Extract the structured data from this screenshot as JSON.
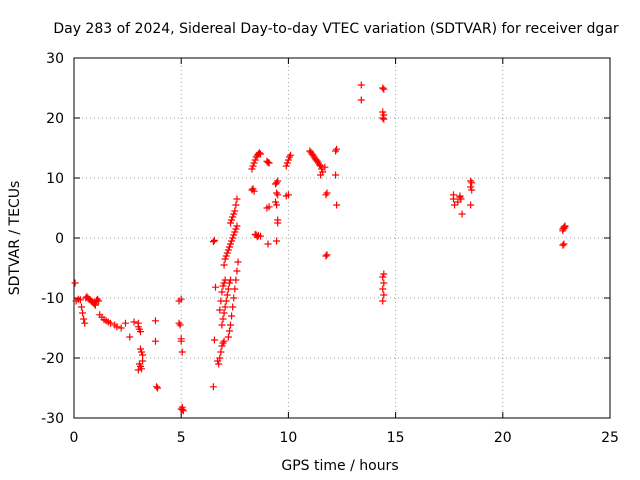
{
  "chart_data": {
    "type": "scatter",
    "title": "Day 283 of 2024, Sidereal Day-to-day VTEC variation (SDTVAR) for receiver dgar",
    "xlabel": "GPS time / hours",
    "ylabel": "SDTVAR / TECUs",
    "xlim": [
      0,
      25
    ],
    "ylim": [
      -30,
      30
    ],
    "xticks": [
      0,
      5,
      10,
      15,
      20,
      25
    ],
    "yticks": [
      -30,
      -20,
      -10,
      0,
      10,
      20,
      30
    ],
    "xtick_labels": [
      "0",
      "5",
      "10",
      "15",
      "20",
      "25"
    ],
    "ytick_labels": [
      "-30",
      "-20",
      "-10",
      "0",
      "10",
      "20",
      "30"
    ],
    "grid": true,
    "marker": "plus",
    "color": "#ff0000",
    "series": [
      {
        "name": "SDTVAR",
        "x": [
          0.05,
          0.1,
          0.2,
          0.3,
          0.35,
          0.4,
          0.45,
          0.5,
          0.55,
          0.6,
          0.65,
          0.7,
          0.75,
          0.8,
          0.85,
          0.9,
          0.95,
          1.0,
          1.05,
          1.1,
          1.15,
          1.2,
          1.3,
          1.4,
          1.5,
          1.6,
          1.7,
          1.9,
          2.0,
          2.2,
          2.4,
          2.6,
          2.8,
          3.0,
          3.0,
          3.05,
          3.1,
          3.1,
          3.15,
          3.2,
          3.2,
          3.05,
          3.1,
          3.15,
          3.0,
          3.8,
          3.8,
          3.9,
          3.85,
          4.9,
          4.9,
          4.95,
          5.0,
          5.0,
          5.05,
          5.0,
          5.05,
          5.0,
          5.05,
          5.1,
          6.5,
          6.55,
          6.6,
          6.5,
          6.55,
          6.7,
          6.75,
          6.8,
          6.85,
          6.9,
          6.95,
          7.0,
          6.8,
          6.85,
          6.9,
          6.95,
          7.0,
          7.05,
          6.9,
          6.95,
          7.0,
          7.05,
          7.1,
          7.15,
          7.2,
          7.25,
          7.3,
          7.0,
          7.05,
          7.1,
          7.15,
          7.2,
          7.25,
          7.3,
          7.35,
          7.4,
          7.45,
          7.5,
          7.55,
          7.6,
          7.2,
          7.25,
          7.3,
          7.35,
          7.4,
          7.45,
          7.5,
          7.55,
          7.6,
          7.65,
          7.3,
          7.35,
          7.4,
          7.45,
          7.5,
          7.55,
          7.6,
          8.3,
          8.35,
          8.4,
          8.45,
          8.5,
          8.55,
          8.6,
          8.65,
          8.7,
          8.3,
          8.4,
          8.5,
          8.6,
          8.7,
          8.35,
          8.45,
          8.55,
          9.0,
          9.05,
          9.1,
          9.0,
          9.1,
          9.05,
          9.4,
          9.45,
          9.5,
          9.45,
          9.5,
          9.4,
          9.45,
          9.5,
          9.5,
          9.45,
          9.9,
          9.95,
          10.0,
          10.05,
          10.1,
          9.9,
          10.0,
          11.0,
          11.05,
          11.1,
          11.15,
          11.2,
          11.25,
          11.3,
          11.35,
          11.4,
          11.45,
          11.5,
          11.55,
          11.6,
          11.5,
          11.7,
          11.8,
          11.75,
          11.8,
          11.75,
          12.2,
          12.25,
          12.2,
          12.25,
          13.4,
          13.4,
          14.4,
          14.45,
          14.4,
          14.45,
          14.4,
          14.45,
          14.4,
          14.45,
          14.4,
          14.45,
          14.4,
          14.45,
          17.7,
          17.7,
          17.75,
          17.9,
          18.0,
          18.0,
          18.05,
          18.1,
          18.5,
          18.55,
          18.5,
          18.55,
          18.5,
          22.8,
          22.85,
          22.9,
          22.8,
          22.85,
          22.9,
          22.8,
          22.85
        ],
        "y": [
          -7.5,
          -10.5,
          -10.2,
          -10.3,
          -11.5,
          -12.5,
          -13.5,
          -14.2,
          -10.0,
          -9.8,
          -10.0,
          -10.2,
          -10.3,
          -10.5,
          -10.6,
          -10.8,
          -11.0,
          -11.2,
          -10.4,
          -10.2,
          -10.5,
          -12.8,
          -13.2,
          -13.6,
          -13.8,
          -14.0,
          -14.2,
          -14.5,
          -14.8,
          -15.0,
          -14.2,
          -16.5,
          -14.0,
          -14.2,
          -14.8,
          -15.2,
          -15.6,
          -18.5,
          -19.0,
          -19.5,
          -20.5,
          -21.0,
          -21.4,
          -21.8,
          -22.0,
          -13.8,
          -17.2,
          -25.0,
          -24.8,
          -10.5,
          -14.2,
          -14.5,
          -16.8,
          -17.2,
          -19.0,
          -10.2,
          -28.2,
          -28.5,
          -28.6,
          -28.8,
          -24.8,
          -17.0,
          -8.2,
          -0.6,
          -0.4,
          -20.5,
          -21.0,
          -20.0,
          -19.0,
          -18.0,
          -17.5,
          -17.2,
          -12.0,
          -10.5,
          -9.0,
          -8.0,
          -7.5,
          -7.0,
          -14.5,
          -13.5,
          -12.5,
          -11.5,
          -10.5,
          -9.5,
          -8.5,
          -7.5,
          -7.0,
          -4.5,
          -3.5,
          -3.0,
          -2.5,
          -2.0,
          -1.5,
          -1.0,
          -0.5,
          0.0,
          0.5,
          1.0,
          1.5,
          2.0,
          -16.5,
          -15.5,
          -14.5,
          -13.0,
          -11.5,
          -10.0,
          -8.5,
          -7.0,
          -5.5,
          -4.0,
          2.5,
          3.0,
          3.5,
          4.0,
          4.5,
          5.5,
          6.5,
          11.5,
          12.0,
          12.5,
          13.0,
          13.5,
          13.8,
          14.0,
          14.2,
          14.0,
          8.0,
          7.8,
          0.5,
          0.4,
          0.3,
          8.2,
          0.6,
          0.2,
          12.8,
          12.6,
          12.5,
          5.0,
          5.2,
          -1.0,
          9.0,
          9.2,
          9.5,
          7.5,
          7.2,
          6.0,
          5.5,
          3.0,
          2.5,
          -0.5,
          12.0,
          12.5,
          13.0,
          13.5,
          13.8,
          7.0,
          7.2,
          14.5,
          14.3,
          14.0,
          13.8,
          13.5,
          13.2,
          13.0,
          12.8,
          12.5,
          12.2,
          12.0,
          11.5,
          11.0,
          10.5,
          11.8,
          7.5,
          7.2,
          -2.8,
          -3.0,
          14.5,
          14.8,
          10.5,
          5.5,
          25.5,
          23.0,
          25.0,
          24.8,
          21.0,
          20.5,
          20.0,
          19.8,
          -6.5,
          -7.5,
          -8.5,
          -9.5,
          -10.5,
          -6.0,
          7.2,
          6.5,
          5.5,
          6.0,
          6.8,
          7.0,
          6.5,
          4.0,
          9.5,
          9.2,
          8.5,
          8.0,
          5.5,
          1.5,
          1.8,
          2.0,
          1.2,
          1.6,
          1.9,
          -1.2,
          -1.0
        ]
      }
    ]
  }
}
